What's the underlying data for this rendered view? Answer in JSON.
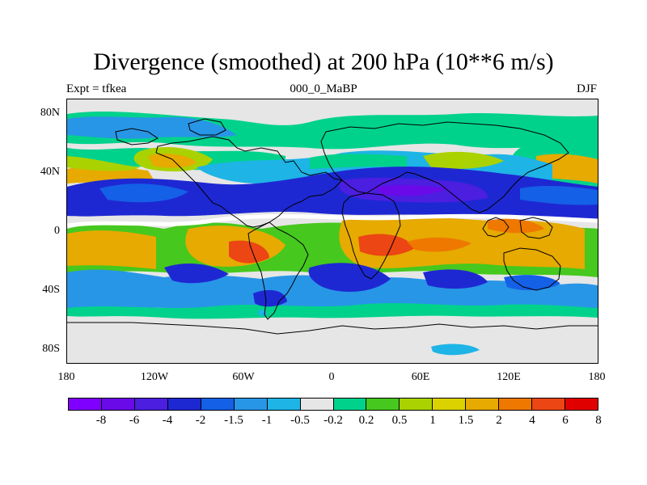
{
  "title": "Divergence (smoothed) at 200 hPa (10**6 m/s)",
  "left_string": "Expt = tfkea",
  "center_string": "000_0_MaBP",
  "right_string": "DJF",
  "map": {
    "projection": "cylindrical equidistant",
    "lat_range": [
      -90,
      90
    ],
    "lon_range": [
      -180,
      180
    ],
    "lat_ticks": [
      "80N",
      "40N",
      "0",
      "40S",
      "80S"
    ],
    "lon_ticks": [
      "180",
      "120W",
      "60W",
      "0",
      "60E",
      "120E",
      "180"
    ],
    "coastlines": true
  },
  "colorbar": {
    "colors": [
      "#7f00ff",
      "#6a0ae8",
      "#4b1ee0",
      "#1e28d2",
      "#1460e6",
      "#2896e6",
      "#1eb4e6",
      "#e6e6e6",
      "#00d28c",
      "#46c81e",
      "#aad200",
      "#dcd200",
      "#e6aa00",
      "#ee7800",
      "#eb4614",
      "#e10000"
    ],
    "levels": [
      "-8",
      "-6",
      "-4",
      "-2",
      "-1.5",
      "-1",
      "-0.5",
      "-0.2",
      "0.2",
      "0.5",
      "1",
      "1.5",
      "2",
      "4",
      "6",
      "8"
    ]
  }
}
